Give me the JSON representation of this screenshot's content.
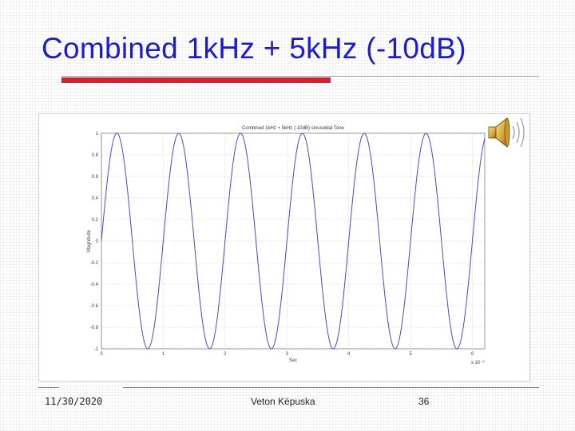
{
  "slide": {
    "title": "Combined 1kHz + 5kHz (-10dB)",
    "accent_color": "#d9202a",
    "title_color": "#1c1ccc"
  },
  "footer": {
    "date": "11/30/2020",
    "author": "Veton Këpuska",
    "page": "36"
  },
  "audio": {
    "icon": "speaker-icon"
  },
  "chart_data": {
    "type": "line",
    "title": "Combined 1kHz + 5kHz (-10dB) sinusoidal Tone",
    "xlabel": "Sec",
    "ylabel": "Magnitude",
    "x_exponent_label": "x 10⁻³",
    "xlim": [
      0,
      6.2
    ],
    "ylim": [
      -1,
      1
    ],
    "x_ticks": [
      "0",
      "1",
      "2",
      "3",
      "4",
      "5",
      "6"
    ],
    "y_ticks": [
      "1",
      "0.8",
      "0.6",
      "0.4",
      "0.2",
      "0",
      "-0.2",
      "-0.4",
      "-0.6",
      "-0.8",
      "-1"
    ],
    "grid": true,
    "line_color": "#4a4ac4",
    "series": [
      {
        "function": "sine",
        "amplitude": 1,
        "frequency_per_xunit": 1,
        "phase": 0,
        "x_start": 0,
        "x_end": 6.2,
        "samples": 600
      }
    ]
  }
}
